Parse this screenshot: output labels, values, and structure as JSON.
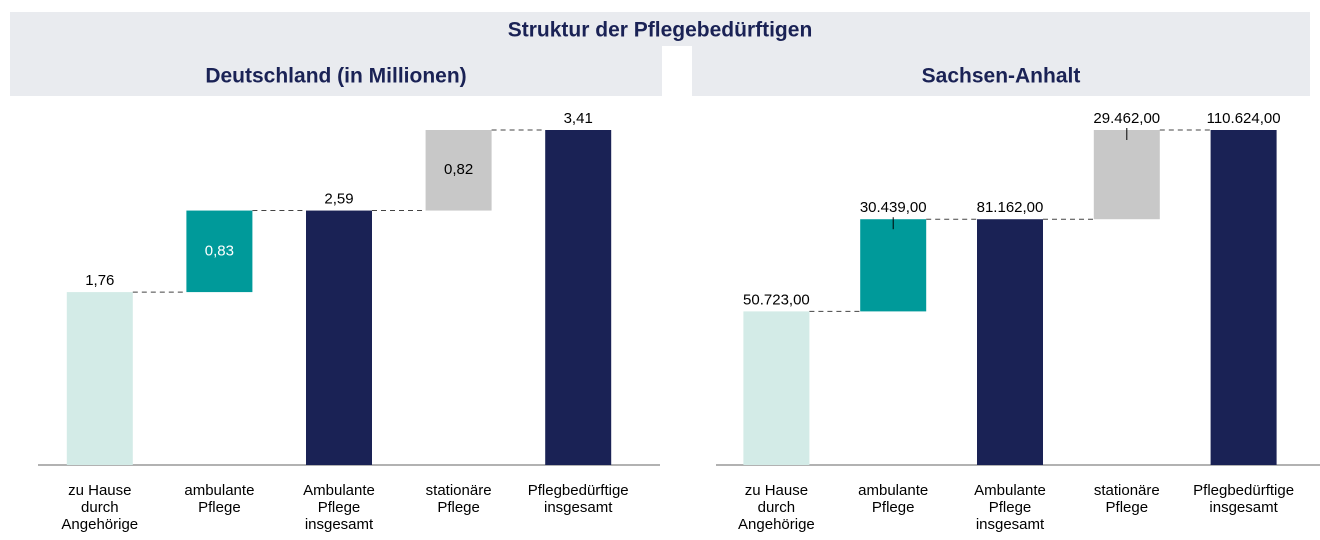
{
  "title": "Struktur der Pflegebedürftigen",
  "chart_data": [
    {
      "type": "waterfall",
      "title": "Deutschland (in Millionen)",
      "categories": [
        [
          "zu Hause",
          "durch",
          "Angehörige"
        ],
        [
          "ambulante",
          "Pflege"
        ],
        [
          "Ambulante",
          "Pflege",
          "insgesamt"
        ],
        [
          "stationäre",
          "Pflege"
        ],
        [
          "Pflegbedürftige",
          "insgesamt"
        ]
      ],
      "values": [
        1.76,
        0.83,
        2.59,
        0.82,
        3.41
      ],
      "value_labels": [
        "1,76",
        "0,83",
        "2,59",
        "0,82",
        "3,41"
      ],
      "measure": [
        "relative",
        "relative",
        "total",
        "relative",
        "total"
      ],
      "colors": [
        "#d3ebe7",
        "#009a9a",
        "#1a2255",
        "#c8c8c8",
        "#1a2255"
      ],
      "inside_labels": true
    },
    {
      "type": "waterfall",
      "title": "Sachsen-Anhalt",
      "categories": [
        [
          "zu Hause",
          "durch",
          "Angehörige"
        ],
        [
          "ambulante",
          "Pflege"
        ],
        [
          "Ambulante",
          "Pflege",
          "insgesamt"
        ],
        [
          "stationäre",
          "Pflege"
        ],
        [
          "Pflegbedürftige",
          "insgesamt"
        ]
      ],
      "values": [
        50723,
        30439,
        81162,
        29462,
        110624
      ],
      "value_labels": [
        "50.723,00",
        "30.439,00",
        "81.162,00",
        "29.462,00",
        "110.624,00"
      ],
      "measure": [
        "relative",
        "relative",
        "total",
        "relative",
        "total"
      ],
      "colors": [
        "#d3ebe7",
        "#009a9a",
        "#1a2255",
        "#c8c8c8",
        "#1a2255"
      ],
      "inside_labels": false
    }
  ]
}
